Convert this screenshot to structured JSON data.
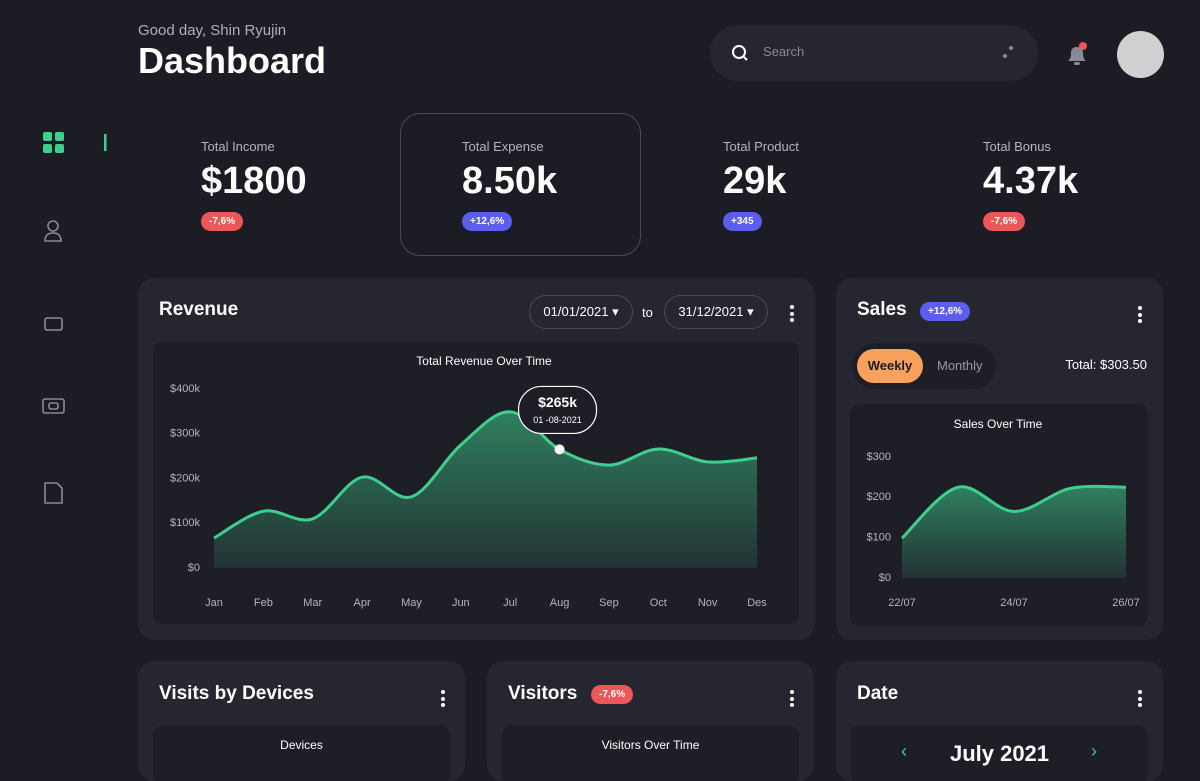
{
  "header": {
    "greeting": "Good day, Shin Ryujin",
    "title": "Dashboard",
    "search_placeholder": "Search"
  },
  "stats": [
    {
      "label": "Total Income",
      "value": "$1800",
      "change": "-7,6%"
    },
    {
      "label": "Total Expense",
      "value": "8.50k",
      "change": "+12,6%"
    },
    {
      "label": "Total Product",
      "value": "29k",
      "change": "+345"
    },
    {
      "label": "Total Bonus",
      "value": "4.37k",
      "change": "-7,6%"
    }
  ],
  "revenue": {
    "title": "Revenue",
    "date_from": "01/01/2021",
    "to": "to",
    "date_to": "31/12/2021",
    "tooltip": {
      "value": "$265k",
      "date": "01 -08-2021"
    },
    "chart_data": {
      "type": "area",
      "title": "Total Revenue Over Time",
      "color": "#3ecf8e",
      "categories": [
        "Jan",
        "Feb",
        "Mar",
        "Apr",
        "May",
        "Jun",
        "Jul",
        "Aug",
        "Sep",
        "Oct",
        "Nov",
        "Des"
      ],
      "values": [
        67,
        127,
        110,
        203,
        159,
        275,
        349,
        265,
        230,
        266,
        237,
        246
      ],
      "ylim": [
        0,
        400
      ],
      "yticks": [
        {
          "value": 0,
          "label": "$0"
        },
        {
          "value": 100,
          "label": "$100k"
        },
        {
          "value": 200,
          "label": "$200k"
        },
        {
          "value": 300,
          "label": "$300k"
        },
        {
          "value": 400,
          "label": "$400k"
        }
      ]
    }
  },
  "sales": {
    "title": "Sales",
    "badge": "+12,6%",
    "tabs": [
      "Weekly",
      "Monthly"
    ],
    "total": "Total: $303.50",
    "chart_data": {
      "type": "area",
      "title": "Sales Over Time",
      "color": "#3ecf8e",
      "categories": [
        "22/07",
        null,
        "24/07",
        null,
        "26/07"
      ],
      "values": [
        99,
        225,
        165,
        222,
        225
      ],
      "ylim": [
        0,
        300
      ],
      "yticks": [
        {
          "value": 0,
          "label": "$0"
        },
        {
          "value": 100,
          "label": "$100"
        },
        {
          "value": 200,
          "label": "$200"
        },
        {
          "value": 300,
          "label": "$300"
        }
      ]
    }
  },
  "visits": {
    "title": "Visits by Devices",
    "chart_title": "Devices"
  },
  "visitors": {
    "title": "Visitors",
    "badge": "-7,6%",
    "chart_title": "Visitors Over Time"
  },
  "date": {
    "title": "Date",
    "month": "July 2021"
  }
}
